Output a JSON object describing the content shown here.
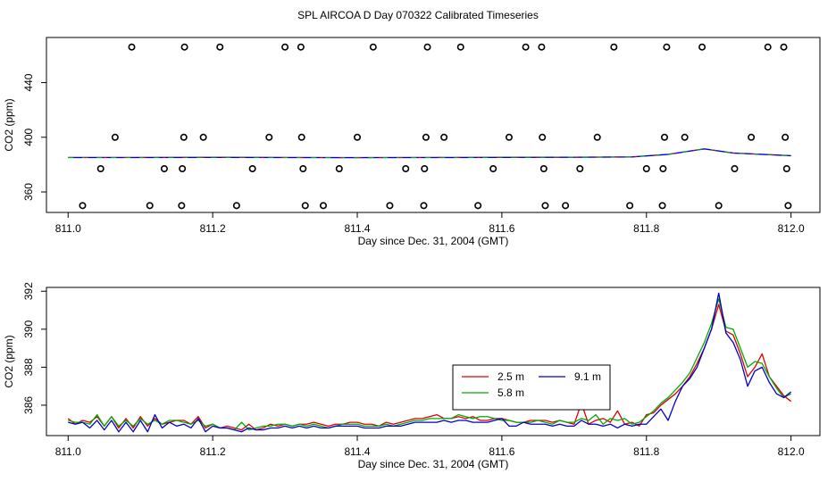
{
  "title": "SPL AIRCOA D  Day 070322  Calibrated Timeseries",
  "chart_data": [
    {
      "type": "scatter",
      "name": "top-panel",
      "xlabel": "Day since Dec. 31, 2004 (GMT)",
      "ylabel": "CO2 (ppm)",
      "xlim": [
        810.97,
        812.04
      ],
      "ylim": [
        345,
        473
      ],
      "xticks": [
        "811.0",
        "811.2",
        "811.4",
        "811.6",
        "811.8",
        "812.0"
      ],
      "yticks": [
        "360",
        "400",
        "440"
      ],
      "grid": false,
      "line_x": [
        811.0,
        811.1,
        811.2,
        811.3,
        811.4,
        811.5,
        811.6,
        811.7,
        811.78,
        811.83,
        811.88,
        811.92,
        812.0
      ],
      "line_y": [
        385.2,
        385.2,
        385.3,
        385.2,
        385.1,
        385.2,
        385.3,
        385.4,
        385.6,
        387.5,
        391.5,
        388.5,
        386.5
      ],
      "points": [
        {
          "x": 811.02,
          "y": 350
        },
        {
          "x": 811.045,
          "y": 377
        },
        {
          "x": 811.065,
          "y": 400
        },
        {
          "x": 811.088,
          "y": 466
        },
        {
          "x": 811.113,
          "y": 350
        },
        {
          "x": 811.133,
          "y": 377
        },
        {
          "x": 811.157,
          "y": 350
        },
        {
          "x": 811.158,
          "y": 377
        },
        {
          "x": 811.16,
          "y": 400
        },
        {
          "x": 811.161,
          "y": 466
        },
        {
          "x": 811.187,
          "y": 400
        },
        {
          "x": 811.21,
          "y": 466
        },
        {
          "x": 811.233,
          "y": 350
        },
        {
          "x": 811.255,
          "y": 377
        },
        {
          "x": 811.278,
          "y": 400
        },
        {
          "x": 811.3,
          "y": 466
        },
        {
          "x": 811.322,
          "y": 466
        },
        {
          "x": 811.323,
          "y": 400
        },
        {
          "x": 811.325,
          "y": 377
        },
        {
          "x": 811.328,
          "y": 350
        },
        {
          "x": 811.353,
          "y": 350
        },
        {
          "x": 811.375,
          "y": 377
        },
        {
          "x": 811.4,
          "y": 400
        },
        {
          "x": 811.422,
          "y": 466
        },
        {
          "x": 811.445,
          "y": 350
        },
        {
          "x": 811.467,
          "y": 377
        },
        {
          "x": 811.492,
          "y": 350
        },
        {
          "x": 811.493,
          "y": 377
        },
        {
          "x": 811.495,
          "y": 400
        },
        {
          "x": 811.497,
          "y": 466
        },
        {
          "x": 811.52,
          "y": 400
        },
        {
          "x": 811.543,
          "y": 466
        },
        {
          "x": 811.567,
          "y": 350
        },
        {
          "x": 811.588,
          "y": 377
        },
        {
          "x": 811.61,
          "y": 400
        },
        {
          "x": 811.633,
          "y": 466
        },
        {
          "x": 811.655,
          "y": 466
        },
        {
          "x": 811.656,
          "y": 400
        },
        {
          "x": 811.658,
          "y": 377
        },
        {
          "x": 811.66,
          "y": 350
        },
        {
          "x": 811.688,
          "y": 350
        },
        {
          "x": 811.708,
          "y": 377
        },
        {
          "x": 811.732,
          "y": 400
        },
        {
          "x": 811.755,
          "y": 466
        },
        {
          "x": 811.777,
          "y": 350
        },
        {
          "x": 811.8,
          "y": 377
        },
        {
          "x": 811.822,
          "y": 350
        },
        {
          "x": 811.823,
          "y": 377
        },
        {
          "x": 811.825,
          "y": 400
        },
        {
          "x": 811.828,
          "y": 466
        },
        {
          "x": 811.853,
          "y": 400
        },
        {
          "x": 811.877,
          "y": 466
        },
        {
          "x": 811.9,
          "y": 350
        },
        {
          "x": 811.922,
          "y": 377
        },
        {
          "x": 811.945,
          "y": 400
        },
        {
          "x": 811.968,
          "y": 466
        },
        {
          "x": 811.99,
          "y": 466
        },
        {
          "x": 811.992,
          "y": 400
        },
        {
          "x": 811.994,
          "y": 377
        },
        {
          "x": 811.996,
          "y": 350
        }
      ]
    },
    {
      "type": "line",
      "name": "bottom-panel",
      "xlabel": "Day since Dec. 31, 2004 (GMT)",
      "ylabel": "CO2 (ppm)",
      "xlim": [
        810.97,
        812.04
      ],
      "ylim": [
        384.4,
        392.2
      ],
      "xticks": [
        "811.0",
        "811.2",
        "811.4",
        "811.6",
        "811.8",
        "812.0"
      ],
      "yticks": [
        "386",
        "388",
        "390",
        "392"
      ],
      "grid": false,
      "legend_position": "center",
      "x": [
        811.0,
        811.01,
        811.02,
        811.03,
        811.04,
        811.05,
        811.06,
        811.07,
        811.08,
        811.09,
        811.1,
        811.11,
        811.12,
        811.13,
        811.14,
        811.15,
        811.16,
        811.17,
        811.18,
        811.19,
        811.2,
        811.21,
        811.22,
        811.23,
        811.24,
        811.25,
        811.26,
        811.27,
        811.28,
        811.29,
        811.3,
        811.31,
        811.32,
        811.33,
        811.34,
        811.35,
        811.36,
        811.37,
        811.38,
        811.39,
        811.4,
        811.41,
        811.42,
        811.43,
        811.44,
        811.45,
        811.46,
        811.47,
        811.48,
        811.49,
        811.5,
        811.51,
        811.52,
        811.53,
        811.54,
        811.55,
        811.56,
        811.57,
        811.58,
        811.59,
        811.6,
        811.61,
        811.62,
        811.63,
        811.64,
        811.65,
        811.66,
        811.67,
        811.68,
        811.69,
        811.7,
        811.71,
        811.72,
        811.73,
        811.74,
        811.75,
        811.76,
        811.77,
        811.78,
        811.79,
        811.8,
        811.81,
        811.82,
        811.83,
        811.84,
        811.85,
        811.86,
        811.87,
        811.88,
        811.89,
        811.9,
        811.91,
        811.92,
        811.93,
        811.94,
        811.95,
        811.96,
        811.97,
        811.98,
        811.99,
        812.0
      ],
      "series": [
        {
          "name": "2.5 m",
          "color": "#dd0000",
          "values": [
            385.3,
            385.0,
            385.2,
            385.1,
            385.4,
            384.9,
            385.4,
            384.8,
            385.3,
            384.8,
            385.4,
            384.9,
            385.3,
            385.0,
            385.1,
            385.2,
            385.2,
            385.0,
            385.4,
            384.8,
            385.0,
            384.8,
            384.9,
            384.8,
            384.7,
            385.0,
            384.7,
            384.8,
            385.0,
            384.9,
            385.0,
            384.9,
            385.0,
            385.0,
            385.1,
            385.0,
            384.9,
            385.0,
            385.0,
            385.1,
            385.1,
            385.0,
            385.0,
            384.9,
            385.1,
            385.0,
            385.1,
            385.2,
            385.3,
            385.3,
            385.4,
            385.5,
            385.3,
            385.3,
            385.4,
            385.3,
            385.4,
            385.2,
            385.2,
            385.3,
            385.3,
            385.2,
            385.1,
            385.1,
            385.2,
            385.2,
            385.2,
            385.1,
            385.2,
            385.1,
            385.0,
            386.1,
            385.0,
            385.2,
            385.3,
            385.1,
            385.7,
            385.0,
            385.1,
            384.9,
            385.5,
            385.6,
            386.0,
            386.3,
            386.6,
            387.0,
            387.5,
            388.2,
            389.0,
            390.0,
            391.3,
            389.9,
            389.7,
            388.7,
            387.5,
            388.0,
            388.7,
            387.5,
            387.0,
            386.5,
            386.2
          ]
        },
        {
          "name": "5.8 m",
          "color": "#00aa00",
          "values": [
            385.2,
            385.1,
            385.1,
            385.0,
            385.5,
            384.9,
            385.4,
            384.9,
            385.2,
            384.9,
            385.3,
            385.0,
            385.2,
            385.0,
            385.2,
            385.2,
            385.1,
            385.0,
            385.2,
            384.9,
            385.0,
            384.8,
            384.8,
            384.7,
            385.1,
            384.7,
            384.8,
            384.9,
            384.9,
            385.0,
            385.0,
            384.9,
            385.0,
            384.9,
            385.0,
            384.9,
            384.8,
            384.9,
            385.0,
            385.0,
            385.0,
            384.9,
            384.9,
            384.9,
            385.0,
            384.9,
            385.0,
            385.1,
            385.2,
            385.2,
            385.3,
            385.3,
            385.3,
            385.3,
            385.5,
            385.4,
            385.3,
            385.4,
            385.4,
            385.3,
            385.2,
            385.2,
            385.1,
            385.1,
            385.1,
            385.2,
            385.1,
            385.0,
            385.2,
            385.1,
            385.1,
            385.3,
            385.2,
            385.5,
            385.0,
            385.3,
            385.2,
            385.3,
            385.0,
            385.1,
            385.4,
            385.7,
            386.1,
            386.4,
            386.8,
            387.2,
            387.7,
            388.5,
            389.3,
            390.3,
            391.6,
            390.1,
            390.0,
            389.0,
            388.0,
            388.3,
            388.2,
            387.5,
            386.9,
            386.4,
            386.6
          ]
        },
        {
          "name": "9.1 m",
          "color": "#0000cc",
          "values": [
            385.1,
            385.0,
            385.1,
            384.8,
            385.2,
            384.7,
            385.2,
            384.6,
            385.1,
            384.6,
            385.2,
            384.6,
            385.5,
            384.8,
            385.1,
            384.9,
            385.0,
            384.8,
            385.3,
            384.6,
            384.9,
            384.8,
            384.8,
            384.7,
            384.6,
            384.8,
            384.7,
            384.7,
            384.8,
            384.8,
            384.9,
            384.8,
            384.9,
            384.8,
            384.9,
            384.8,
            384.8,
            384.9,
            384.9,
            384.9,
            384.9,
            384.8,
            384.8,
            384.8,
            384.9,
            384.9,
            384.9,
            385.0,
            385.1,
            385.1,
            385.1,
            385.1,
            385.2,
            385.1,
            385.2,
            385.2,
            385.1,
            385.1,
            385.1,
            385.2,
            385.3,
            384.9,
            384.9,
            385.1,
            385.0,
            385.0,
            385.0,
            384.9,
            385.0,
            384.9,
            384.9,
            385.2,
            385.0,
            385.0,
            384.9,
            385.0,
            384.8,
            385.0,
            384.9,
            385.0,
            385.0,
            385.4,
            385.8,
            385.2,
            386.2,
            387.0,
            387.4,
            388.0,
            389.0,
            390.0,
            391.9,
            389.8,
            389.3,
            388.4,
            387.0,
            387.8,
            388.0,
            387.2,
            386.6,
            386.4,
            386.7
          ]
        }
      ]
    }
  ]
}
